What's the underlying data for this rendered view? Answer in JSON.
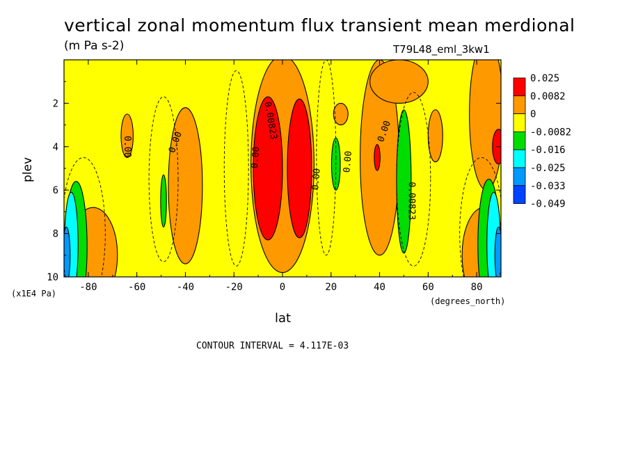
{
  "title": "vertical zonal momentum flux transient mean merdional",
  "units": "(m Pa s-2)",
  "run_id": "T79L48_eml_3kw1",
  "colors": {
    "red": "#ff0000",
    "orange": "#ff9900",
    "yellow": "#ffff00",
    "green": "#00dd00",
    "cyan": "#00ffff",
    "lightblue": "#0099ff",
    "blue": "#0044ff"
  },
  "chart_data": {
    "type": "contour",
    "xlabel": "lat",
    "ylabel": "plev",
    "x_units": "(degrees_north)",
    "y_units": "(x1E4 Pa)",
    "xlim": [
      -90,
      90
    ],
    "ylim": [
      10,
      0
    ],
    "x_ticks": [
      "-80",
      "-60",
      "-40",
      "-20",
      "0",
      "20",
      "40",
      "60",
      "80"
    ],
    "y_ticks": [
      "2",
      "4",
      "6",
      "8",
      "10"
    ],
    "contour_interval": "CONTOUR INTERVAL = 4.117E-03",
    "legend": [
      {
        "label": "0.025",
        "color": "#ff0000"
      },
      {
        "label": "0.0082",
        "color": "#ff9900"
      },
      {
        "label": "0",
        "color": "#ffff00"
      },
      {
        "label": "-0.0082",
        "color": "#00dd00"
      },
      {
        "label": "-0.016",
        "color": "#00ffff"
      },
      {
        "label": "-0.025",
        "color": "#0099ff"
      },
      {
        "label": "-0.033",
        "color": "#0044ff"
      },
      {
        "label": "-0.049",
        "color": "#0044ff"
      }
    ],
    "contour_labels": [
      {
        "text": "0.00",
        "lat": -64,
        "plev": 4.0,
        "rot": 90
      },
      {
        "text": "0.00",
        "lat": -44,
        "plev": 3.8,
        "rot": -70
      },
      {
        "text": "0.00",
        "lat": -11,
        "plev": 4.5,
        "rot": -85
      },
      {
        "text": "0.00823",
        "lat": -5,
        "plev": 2.8,
        "rot": 80
      },
      {
        "text": "0.00",
        "lat": 14,
        "plev": 5.5,
        "rot": -85
      },
      {
        "text": "0.00",
        "lat": 27,
        "plev": 4.7,
        "rot": -85
      },
      {
        "text": "0.00",
        "lat": 42,
        "plev": 3.3,
        "rot": -70
      },
      {
        "text": "0.00823",
        "lat": 53,
        "plev": 6.5,
        "rot": 90
      }
    ],
    "regions": [
      {
        "color": "#ff9900",
        "lat": -78,
        "plev": 9.0,
        "rlat": 10,
        "rplev": 2.2
      },
      {
        "color": "#ff9900",
        "lat": -40,
        "plev": 5.8,
        "rlat": 7,
        "rplev": 3.6
      },
      {
        "color": "#ff9900",
        "lat": -64,
        "plev": 3.5,
        "rlat": 2.5,
        "rplev": 1.0
      },
      {
        "color": "#ff9900",
        "lat": 0,
        "plev": 4.8,
        "rlat": 13,
        "rplev": 5.0
      },
      {
        "color": "#ff9900",
        "lat": 40,
        "plev": 4.5,
        "rlat": 8,
        "rplev": 4.5
      },
      {
        "color": "#ff9900",
        "lat": 48,
        "plev": 1.0,
        "rlat": 12,
        "rplev": 1.0
      },
      {
        "color": "#ff9900",
        "lat": 63,
        "plev": 3.5,
        "rlat": 3,
        "rplev": 1.2
      },
      {
        "color": "#ff9900",
        "lat": 84,
        "plev": 2.5,
        "rlat": 7,
        "rplev": 3.5
      },
      {
        "color": "#ff9900",
        "lat": 83,
        "plev": 9.0,
        "rlat": 9,
        "rplev": 2.2
      },
      {
        "color": "#ff9900",
        "lat": 24,
        "plev": 2.5,
        "rlat": 3,
        "rplev": 0.5
      },
      {
        "color": "#ff0000",
        "lat": -6,
        "plev": 5.0,
        "rlat": 6,
        "rplev": 3.3
      },
      {
        "color": "#ff0000",
        "lat": 7,
        "plev": 5.0,
        "rlat": 5,
        "rplev": 3.2
      },
      {
        "color": "#ff0000",
        "lat": 39,
        "plev": 4.5,
        "rlat": 1.2,
        "rplev": 0.6
      },
      {
        "color": "#ff0000",
        "lat": 89,
        "plev": 4.0,
        "rlat": 2.5,
        "rplev": 0.8
      },
      {
        "color": "#00dd00",
        "lat": -49,
        "plev": 6.5,
        "rlat": 1.2,
        "rplev": 1.2
      },
      {
        "color": "#00dd00",
        "lat": 22,
        "plev": 4.8,
        "rlat": 1.8,
        "rplev": 1.2
      },
      {
        "color": "#00dd00",
        "lat": 50,
        "plev": 5.6,
        "rlat": 3,
        "rplev": 3.3
      },
      {
        "color": "#00dd00",
        "lat": -85,
        "plev": 8.6,
        "rlat": 4.5,
        "rplev": 3.0
      },
      {
        "color": "#00dd00",
        "lat": 85,
        "plev": 8.5,
        "rlat": 4.5,
        "rplev": 3.0
      },
      {
        "color": "#00ffff",
        "lat": -87,
        "plev": 8.5,
        "rlat": 2.8,
        "rplev": 2.4
      },
      {
        "color": "#00ffff",
        "lat": 87,
        "plev": 8.5,
        "rlat": 2.8,
        "rplev": 2.4
      },
      {
        "color": "#0099ff",
        "lat": -89,
        "plev": 9.0,
        "rlat": 1.5,
        "rplev": 1.3
      },
      {
        "color": "#0099ff",
        "lat": 89,
        "plev": 9.0,
        "rlat": 1.5,
        "rplev": 1.3
      }
    ]
  }
}
